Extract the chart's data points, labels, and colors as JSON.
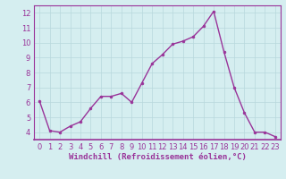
{
  "x": [
    0,
    1,
    2,
    3,
    4,
    5,
    6,
    7,
    8,
    9,
    10,
    11,
    12,
    13,
    14,
    15,
    16,
    17,
    18,
    19,
    20,
    21,
    22,
    23
  ],
  "y": [
    6.1,
    4.1,
    4.0,
    4.4,
    4.7,
    5.6,
    6.4,
    6.4,
    6.6,
    6.0,
    7.3,
    8.6,
    9.2,
    9.9,
    10.1,
    10.4,
    11.1,
    12.1,
    9.4,
    7.0,
    5.3,
    4.0,
    4.0,
    3.7
  ],
  "line_color": "#993399",
  "marker": "o",
  "marker_size": 2.0,
  "background_color": "#d5eef0",
  "grid_color": "#b8d8dc",
  "xlabel": "Windchill (Refroidissement éolien,°C)",
  "xlabel_fontsize": 6.5,
  "tick_fontsize": 6.0,
  "xlim": [
    -0.5,
    23.5
  ],
  "ylim": [
    3.5,
    12.5
  ],
  "yticks": [
    4,
    5,
    6,
    7,
    8,
    9,
    10,
    11,
    12
  ],
  "xticks": [
    0,
    1,
    2,
    3,
    4,
    5,
    6,
    7,
    8,
    9,
    10,
    11,
    12,
    13,
    14,
    15,
    16,
    17,
    18,
    19,
    20,
    21,
    22,
    23
  ],
  "label_color": "#993399",
  "spine_color": "#993399",
  "linewidth": 1.0,
  "grid_linewidth": 0.5
}
